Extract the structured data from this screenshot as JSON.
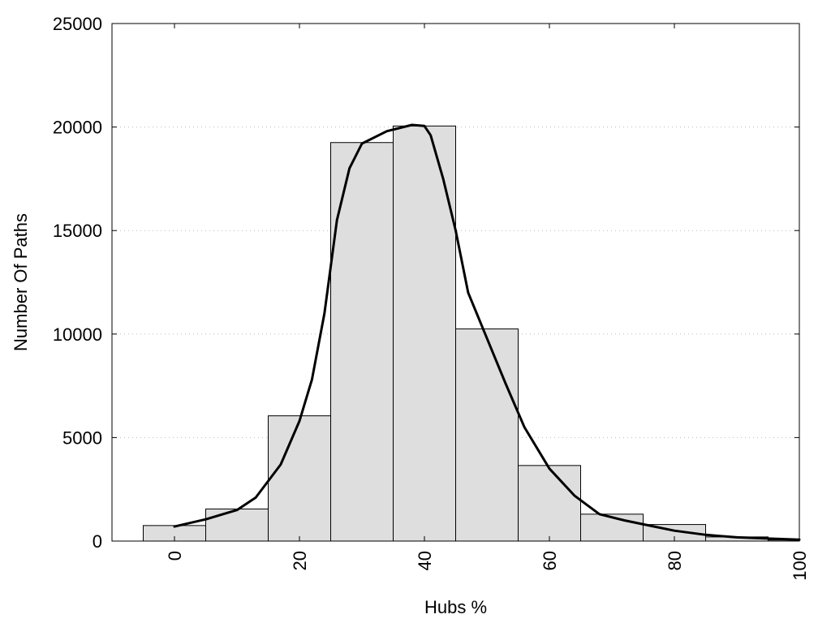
{
  "chart_data": {
    "type": "bar",
    "title": "",
    "xlabel": "Hubs %",
    "ylabel": "Number Of Paths",
    "xlim": [
      -10,
      100
    ],
    "ylim": [
      0,
      25000
    ],
    "x_ticks": [
      0,
      20,
      40,
      60,
      80,
      100
    ],
    "y_ticks": [
      0,
      5000,
      10000,
      15000,
      20000,
      25000
    ],
    "grid": "horizontal dotted",
    "bar_width": 10,
    "bars": [
      {
        "x": 0,
        "value": 750
      },
      {
        "x": 10,
        "value": 1550
      },
      {
        "x": 20,
        "value": 6050
      },
      {
        "x": 30,
        "value": 19250
      },
      {
        "x": 40,
        "value": 20050
      },
      {
        "x": 50,
        "value": 10250
      },
      {
        "x": 60,
        "value": 3650
      },
      {
        "x": 70,
        "value": 1300
      },
      {
        "x": 80,
        "value": 800
      },
      {
        "x": 90,
        "value": 200
      },
      {
        "x": 100,
        "value": 50
      }
    ],
    "curve": {
      "x": [
        0,
        5,
        10,
        13,
        17,
        20,
        22,
        24,
        26,
        28,
        30,
        34,
        38,
        40,
        41,
        43,
        45,
        47,
        50,
        53,
        56,
        60,
        64,
        68,
        72,
        76,
        80,
        85,
        90,
        95,
        100
      ],
      "y": [
        700,
        1050,
        1500,
        2100,
        3700,
        5800,
        7800,
        11000,
        15500,
        18000,
        19200,
        19800,
        20100,
        20050,
        19600,
        17500,
        15000,
        12000,
        9800,
        7600,
        5500,
        3500,
        2200,
        1300,
        1000,
        750,
        500,
        300,
        180,
        120,
        70
      ]
    },
    "colors": {
      "bar_fill": "#dedede",
      "bar_stroke": "#000000",
      "curve": "#000000",
      "grid": "#bbbbbb"
    }
  }
}
